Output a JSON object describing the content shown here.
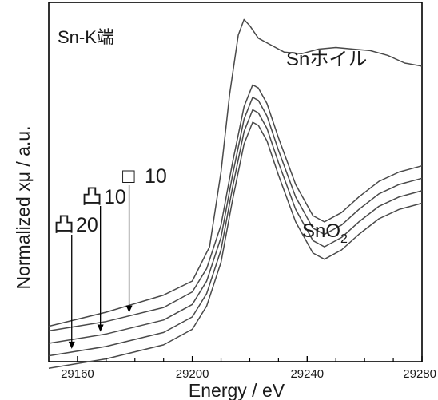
{
  "chart_data": {
    "type": "line",
    "edge_label": "Sn-K端",
    "xlabel": "Energy / eV",
    "ylabel": "Normalized xμ / a.u.",
    "xlim": [
      29150,
      29280
    ],
    "xticks": [
      29160,
      29200,
      29240,
      29280
    ],
    "grid": false,
    "series": [
      {
        "name": "Snホイル",
        "x": [
          29150,
          29170,
          29190,
          29200,
          29206,
          29210,
          29213,
          29216,
          29218,
          29220,
          29223,
          29227,
          29232,
          29238,
          29244,
          29250,
          29256,
          29262,
          29268,
          29274,
          29280
        ],
        "y": [
          0.055,
          0.1,
          0.155,
          0.2,
          0.31,
          0.55,
          0.8,
          0.99,
          1.04,
          1.02,
          0.98,
          0.96,
          0.935,
          0.93,
          0.945,
          0.95,
          0.945,
          0.94,
          0.925,
          0.9,
          0.89
        ]
      },
      {
        "name": "□10",
        "x": [
          29150,
          29170,
          29190,
          29200,
          29205,
          29210,
          29214,
          29218,
          29221,
          29223,
          29226,
          29230,
          29236,
          29242,
          29246,
          29252,
          29258,
          29265,
          29272,
          29280
        ],
        "y": [
          0.04,
          0.07,
          0.115,
          0.165,
          0.24,
          0.38,
          0.58,
          0.76,
          0.83,
          0.82,
          0.77,
          0.66,
          0.51,
          0.41,
          0.39,
          0.42,
          0.47,
          0.52,
          0.55,
          0.57
        ]
      },
      {
        "name": "凸10",
        "x": [
          29150,
          29170,
          29190,
          29200,
          29205,
          29210,
          29214,
          29218,
          29221,
          29223,
          29226,
          29230,
          29236,
          29242,
          29246,
          29252,
          29258,
          29265,
          29272,
          29280
        ],
        "y": [
          0.0,
          0.03,
          0.075,
          0.125,
          0.2,
          0.34,
          0.54,
          0.72,
          0.79,
          0.78,
          0.73,
          0.62,
          0.47,
          0.37,
          0.35,
          0.38,
          0.43,
          0.48,
          0.51,
          0.53
        ]
      },
      {
        "name": "凸20",
        "x": [
          29150,
          29170,
          29190,
          29200,
          29205,
          29210,
          29214,
          29218,
          29221,
          29223,
          29226,
          29230,
          29236,
          29242,
          29246,
          29252,
          29258,
          29265,
          29272,
          29280
        ],
        "y": [
          -0.04,
          -0.01,
          0.035,
          0.085,
          0.16,
          0.3,
          0.5,
          0.68,
          0.75,
          0.74,
          0.69,
          0.58,
          0.43,
          0.33,
          0.31,
          0.34,
          0.39,
          0.44,
          0.47,
          0.49
        ]
      },
      {
        "name": "SnO2",
        "x": [
          29150,
          29170,
          29190,
          29200,
          29205,
          29210,
          29214,
          29218,
          29221,
          29223,
          29226,
          29230,
          29236,
          29242,
          29246,
          29252,
          29258,
          29265,
          29272,
          29280
        ],
        "y": [
          -0.08,
          -0.05,
          -0.005,
          0.045,
          0.12,
          0.26,
          0.46,
          0.64,
          0.71,
          0.7,
          0.65,
          0.54,
          0.39,
          0.29,
          0.27,
          0.3,
          0.35,
          0.4,
          0.43,
          0.45
        ]
      }
    ],
    "annotations": [
      {
        "mark": "□",
        "text": "10",
        "series": "□10",
        "at_x": 29178
      },
      {
        "mark": "凸",
        "text": "10",
        "series": "凸10",
        "at_x": 29168
      },
      {
        "mark": "凸",
        "text": "20",
        "series": "凸20",
        "at_x": 29158
      }
    ],
    "labels": {
      "foil_text": "Snホイル",
      "sno2_main": "SnO",
      "sno2_sub": "2"
    }
  }
}
